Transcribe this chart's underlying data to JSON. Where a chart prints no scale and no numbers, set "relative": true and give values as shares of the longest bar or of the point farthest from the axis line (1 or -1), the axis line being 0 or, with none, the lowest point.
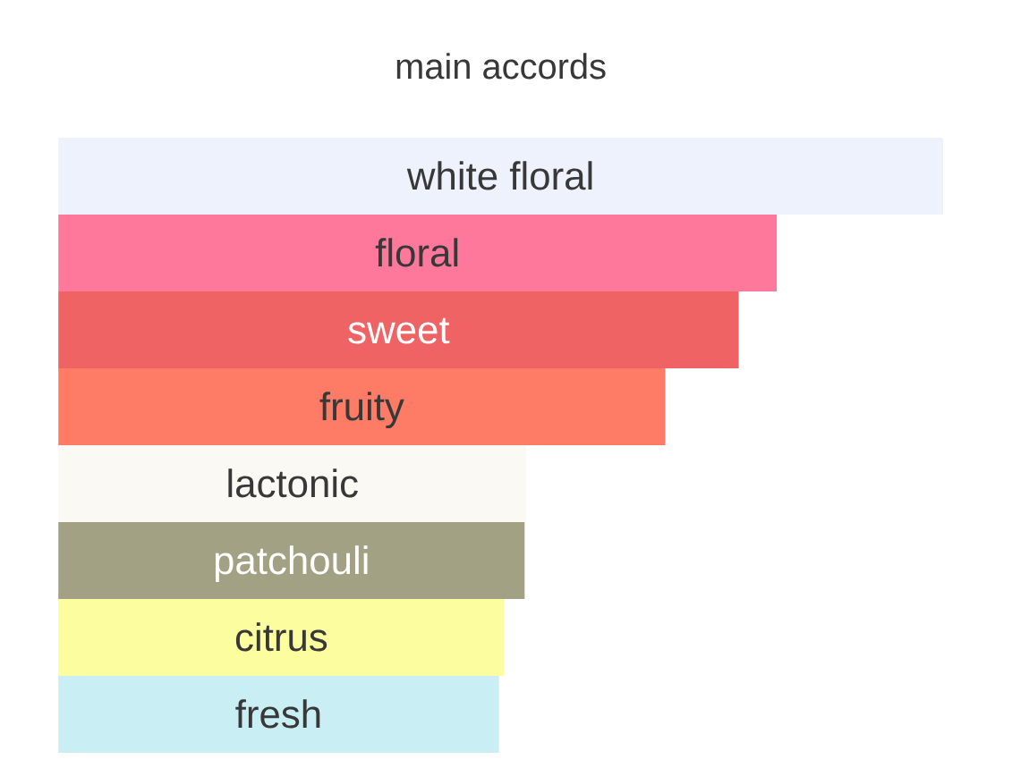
{
  "chart_data": {
    "type": "bar",
    "orientation": "horizontal",
    "relative": true,
    "title": "main accords",
    "categories": [
      "white floral",
      "floral",
      "sweet",
      "fruity",
      "lactonic",
      "patchouli",
      "citrus",
      "fresh"
    ],
    "values": [
      1,
      0.812,
      0.769,
      0.686,
      0.529,
      0.527,
      0.504,
      0.498
    ],
    "colors": [
      "#edf2fc",
      "#fe789b",
      "#ef6365",
      "#fe7b65",
      "#fbf9f4",
      "#a3a183",
      "#fcfd9f",
      "#c9eff4"
    ]
  }
}
